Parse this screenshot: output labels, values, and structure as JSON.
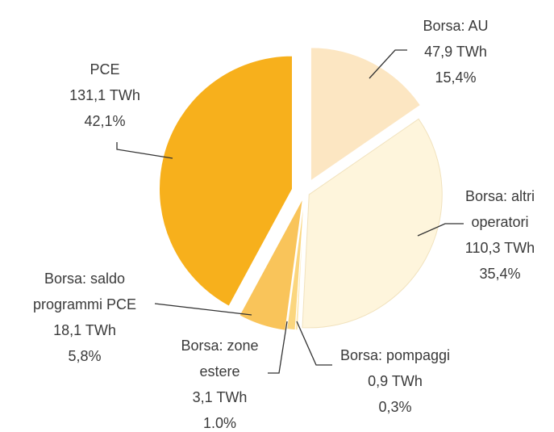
{
  "chart_data": {
    "type": "pie",
    "categories": [
      "Borsa: AU",
      "Borsa: altri operatori",
      "Borsa: pompaggi",
      "Borsa: zone estere",
      "Borsa: saldo programmi PCE",
      "PCE"
    ],
    "values": [
      47.9,
      110.3,
      0.9,
      3.1,
      18.1,
      131.1
    ],
    "value_labels": [
      "47,9 TWh",
      "110,3 TWh",
      "0,9 TWh",
      "3,1 TWh",
      "18,1 TWh",
      "131,1 TWh"
    ],
    "percents": [
      15.4,
      35.4,
      0.3,
      1.0,
      5.8,
      42.1
    ],
    "percent_labels": [
      "15,4%",
      "35,4%",
      "0,3%",
      "1.0%",
      "5,8%",
      "42,1%"
    ],
    "colors": [
      "#fce6c2",
      "#fef5dc",
      "#fde7b0",
      "#fbd67e",
      "#f9c45a",
      "#f7b01c"
    ]
  }
}
